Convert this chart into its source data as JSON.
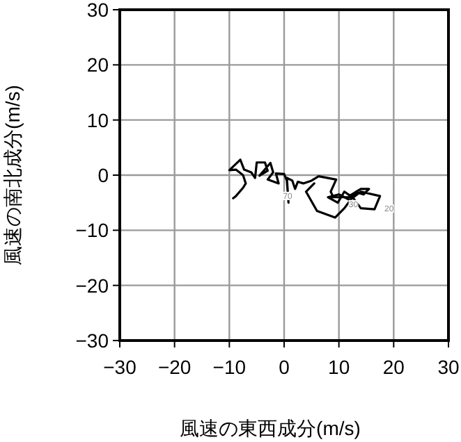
{
  "chart_data": {
    "type": "line",
    "xlabel": "風速の東西成分(m/s)",
    "ylabel": "風速の南北成分(m/s)",
    "xlim": [
      -30,
      30
    ],
    "ylim": [
      -30,
      30
    ],
    "xticks": [
      {
        "value": -30,
        "label": "−30"
      },
      {
        "value": -20,
        "label": "−20"
      },
      {
        "value": -10,
        "label": "−10"
      },
      0,
      10,
      20,
      30
    ],
    "yticks": [
      {
        "value": -30,
        "label": "−30"
      },
      {
        "value": -20,
        "label": "−20"
      },
      {
        "value": -10,
        "label": "−10"
      },
      0,
      10,
      20,
      30
    ],
    "grid": true,
    "marker": "none",
    "line_style": "solid",
    "series": [
      {
        "color": "#000000",
        "x": [
          -9.3,
          -8.8,
          -7.5,
          -7,
          -7.5,
          -8.8,
          -10,
          -8,
          -7.3,
          -6,
          -5.3,
          -5,
          -3.5,
          -3,
          -4.5,
          -2.5,
          -2,
          -3,
          -1,
          -1.5,
          0,
          0.5,
          0.8,
          0.5,
          1.5,
          2,
          2.5,
          3.5,
          5,
          6.3,
          9.5,
          8.5,
          9,
          8,
          9.8,
          11,
          12,
          14,
          15.5,
          14.5,
          13.5,
          12,
          8,
          10,
          12,
          14,
          17.5,
          16.5,
          14,
          12.5,
          11,
          9.3,
          6,
          4,
          5.5
        ],
        "values": [
          -4.2,
          -3.8,
          -2.3,
          -1.5,
          0,
          1,
          0.9,
          2.8,
          1,
          0.5,
          -0.5,
          2.3,
          2.3,
          0.8,
          -0.1,
          2.2,
          0.5,
          -0.8,
          -1.5,
          0.3,
          0.2,
          -1,
          -5,
          -0.5,
          -1,
          -2.5,
          -1.2,
          -1.5,
          -1,
          -0.2,
          -0.8,
          -3,
          -4,
          -4,
          -5,
          -3,
          -3.7,
          -2.5,
          -2.5,
          -3.5,
          -3.2,
          -4,
          -4,
          -3.5,
          -4.5,
          -3,
          -3.8,
          -6.2,
          -6,
          -4,
          -6,
          -7.7,
          -6.5,
          -3,
          -1.5
        ]
      }
    ],
    "annotations": [
      {
        "text": "70",
        "x": -1,
        "y": -1.5
      },
      {
        "text": "30",
        "x": 11,
        "y": -3
      },
      {
        "text": "20",
        "x": 17.5,
        "y": -3.8
      }
    ]
  }
}
